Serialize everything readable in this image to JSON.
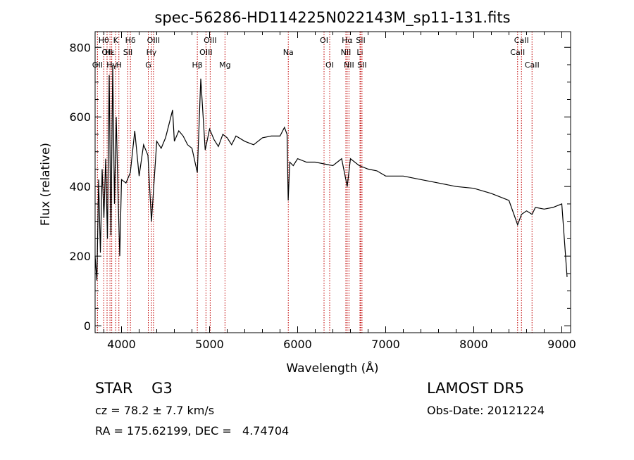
{
  "chart_data": {
    "type": "line",
    "title": "spec-56286-HD114225N022143M_sp11-131.fits",
    "xlabel": "Wavelength (Å)",
    "ylabel": "Flux (relative)",
    "xlim": [
      3700,
      9100
    ],
    "ylim": [
      -20,
      845
    ],
    "x_ticks": [
      4000,
      5000,
      6000,
      7000,
      8000,
      9000
    ],
    "y_ticks": [
      0,
      200,
      400,
      600,
      800
    ],
    "grid": false,
    "legend": "none",
    "line_color": "#000000",
    "marker_line_color": "#c00000",
    "series": [
      {
        "x": [
          3700,
          3720,
          3740,
          3760,
          3780,
          3800,
          3820,
          3840,
          3860,
          3880,
          3900,
          3920,
          3940,
          3960,
          3980,
          4000,
          4050,
          4100,
          4150,
          4200,
          4250,
          4300,
          4340,
          4400,
          4450,
          4500,
          4550,
          4580,
          4600,
          4650,
          4700,
          4750,
          4800,
          4861,
          4900,
          4950,
          5000,
          5050,
          5100,
          5150,
          5200,
          5250,
          5300,
          5400,
          5500,
          5600,
          5700,
          5800,
          5850,
          5880,
          5893,
          5910,
          5950,
          6000,
          6100,
          6200,
          6300,
          6400,
          6500,
          6563,
          6600,
          6700,
          6800,
          6900,
          7000,
          7200,
          7400,
          7600,
          7800,
          8000,
          8200,
          8400,
          8498,
          8542,
          8600,
          8662,
          8700,
          8800,
          8900,
          9000,
          9060
        ],
        "values": [
          200,
          130,
          420,
          210,
          450,
          310,
          480,
          250,
          720,
          260,
          750,
          350,
          600,
          380,
          200,
          420,
          410,
          440,
          560,
          430,
          520,
          490,
          300,
          530,
          510,
          540,
          590,
          620,
          530,
          560,
          545,
          520,
          510,
          440,
          710,
          505,
          565,
          535,
          515,
          550,
          540,
          520,
          545,
          530,
          520,
          540,
          545,
          545,
          570,
          550,
          360,
          470,
          460,
          480,
          470,
          470,
          465,
          460,
          480,
          400,
          480,
          460,
          450,
          445,
          430,
          430,
          420,
          410,
          400,
          395,
          380,
          360,
          290,
          320,
          330,
          320,
          340,
          335,
          340,
          350,
          140
        ]
      }
    ],
    "line_markers": [
      {
        "x": 3727,
        "label": "OII",
        "row": 2
      },
      {
        "x": 3798,
        "label": "Hθ",
        "row": 0
      },
      {
        "x": 3836,
        "label": "OII",
        "row": 1
      },
      {
        "x": 3869,
        "label": "Hε",
        "row": 1
      },
      {
        "x": 3889,
        "label": "Hγ",
        "row": 2
      },
      {
        "x": 3934,
        "label": "K",
        "row": 0
      },
      {
        "x": 3970,
        "label": "H",
        "row": 2
      },
      {
        "x": 4101,
        "label": "Hδ",
        "row": 0
      },
      {
        "x": 4072,
        "label": "SII",
        "row": 1
      },
      {
        "x": 4304,
        "label": "G",
        "row": 2
      },
      {
        "x": 4340,
        "label": "Hγ",
        "row": 1
      },
      {
        "x": 4363,
        "label": "OIII",
        "row": 0
      },
      {
        "x": 4861,
        "label": "Hβ",
        "row": 2
      },
      {
        "x": 4959,
        "label": "OIII",
        "row": 1
      },
      {
        "x": 5007,
        "label": "OIII",
        "row": 0
      },
      {
        "x": 5175,
        "label": "Mg",
        "row": 2
      },
      {
        "x": 5894,
        "label": "Na",
        "row": 1
      },
      {
        "x": 6300,
        "label": "OI",
        "row": 0
      },
      {
        "x": 6364,
        "label": "OI",
        "row": 2
      },
      {
        "x": 6548,
        "label": "NII",
        "row": 1
      },
      {
        "x": 6563,
        "label": "Hα",
        "row": 0
      },
      {
        "x": 6583,
        "label": "NII",
        "row": 2
      },
      {
        "x": 6708,
        "label": "Li",
        "row": 1
      },
      {
        "x": 6716,
        "label": "SII",
        "row": 0
      },
      {
        "x": 6731,
        "label": "SII",
        "row": 2
      },
      {
        "x": 8498,
        "label": "CaII",
        "row": 1
      },
      {
        "x": 8542,
        "label": "CaII",
        "row": 0
      },
      {
        "x": 8662,
        "label": "CaII",
        "row": 2
      }
    ]
  },
  "info": {
    "class_text": "STAR    G3",
    "cz_text": "cz = 78.2 ± 7.7 km/s",
    "coords_text": "RA = 175.62199, DEC =   4.74704",
    "survey_text": "LAMOST DR5",
    "obs_date_text": "Obs-Date: 20121224"
  }
}
